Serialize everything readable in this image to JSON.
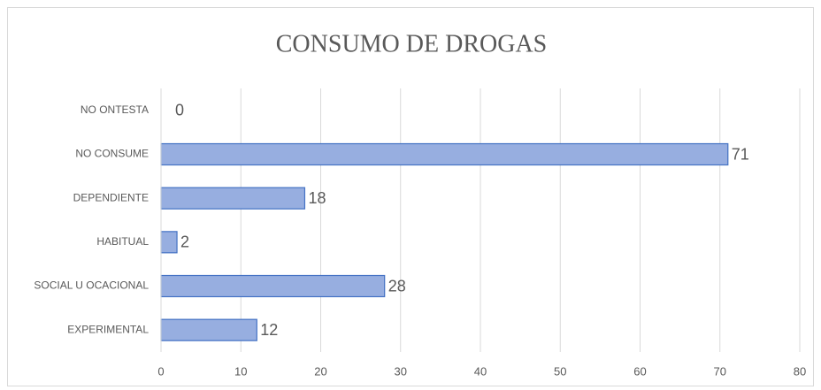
{
  "chart_data": {
    "type": "bar",
    "orientation": "horizontal",
    "title": "CONSUMO DE DROGAS",
    "categories": [
      "EXPERIMENTAL",
      "SOCIAL U OCACIONAL",
      "HABITUAL",
      "DEPENDIENTE",
      "NO CONSUME",
      "NO ONTESTA"
    ],
    "values": [
      12,
      28,
      2,
      18,
      71,
      0
    ],
    "color": "#97aee0",
    "edgecolor": "#4472c4",
    "xlim": [
      0,
      80
    ],
    "xticks": [
      0,
      10,
      20,
      30,
      40,
      50,
      60,
      70,
      80
    ],
    "grid": true
  }
}
